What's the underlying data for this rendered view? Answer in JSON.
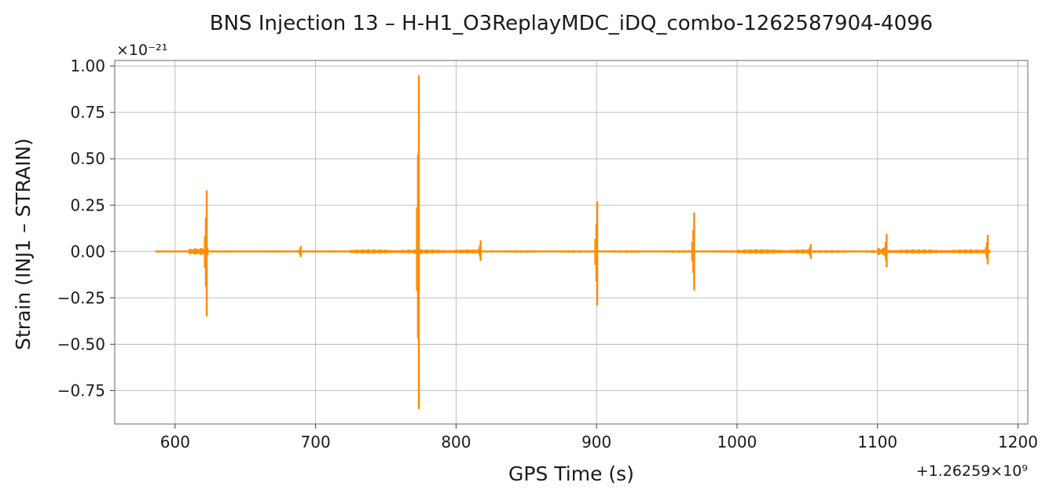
{
  "chart_data": {
    "type": "line",
    "title": "BNS Injection 13 – H-H1_O3ReplayMDC_iDQ_combo-1262587904-4096",
    "xlabel": "GPS Time (s)",
    "ylabel": "Strain (INJ1 – STRAIN)",
    "y_scale_label": "×10⁻²¹",
    "x_offset_label": "+1.26259×10⁹",
    "xlim": [
      557,
      1207
    ],
    "ylim": [
      -0.93,
      1.03
    ],
    "x_ticks": [
      600,
      700,
      800,
      900,
      1000,
      1100,
      1200
    ],
    "x_tick_labels": [
      "600",
      "700",
      "800",
      "900",
      "1000",
      "1100",
      "1200"
    ],
    "y_ticks": [
      -0.75,
      -0.5,
      -0.25,
      0.0,
      0.25,
      0.5,
      0.75,
      1.0
    ],
    "y_tick_labels": [
      "−0.75",
      "−0.50",
      "−0.25",
      "0.00",
      "0.25",
      "0.50",
      "0.75",
      "1.00"
    ],
    "grid": true,
    "x_range": [
      586,
      1180
    ],
    "series": [
      {
        "color": "#ff8c00",
        "noise_bands": [
          {
            "x_start": 586,
            "x_end": 610,
            "amplitude": 0.004
          },
          {
            "x_start": 610,
            "x_end": 624,
            "amplitude": 0.02
          },
          {
            "x_start": 624,
            "x_end": 725,
            "amplitude": 0.006
          },
          {
            "x_start": 725,
            "x_end": 816,
            "amplitude": 0.012
          },
          {
            "x_start": 816,
            "x_end": 1000,
            "amplitude": 0.007
          },
          {
            "x_start": 1000,
            "x_end": 1053,
            "amplitude": 0.013
          },
          {
            "x_start": 1053,
            "x_end": 1100,
            "amplitude": 0.008
          },
          {
            "x_start": 1100,
            "x_end": 1107,
            "amplitude": 0.02
          },
          {
            "x_start": 1107,
            "x_end": 1180,
            "amplitude": 0.012
          }
        ],
        "spikes": [
          {
            "x": 622.5,
            "max": 0.33,
            "min": -0.35
          },
          {
            "x": 689.5,
            "max": 0.03,
            "min": -0.03
          },
          {
            "x": 773.5,
            "max": 0.95,
            "min": -0.85
          },
          {
            "x": 817.5,
            "max": 0.06,
            "min": -0.05
          },
          {
            "x": 900.5,
            "max": 0.27,
            "min": -0.29
          },
          {
            "x": 969.5,
            "max": 0.21,
            "min": -0.21
          },
          {
            "x": 1052.5,
            "max": 0.04,
            "min": -0.04
          },
          {
            "x": 1106.5,
            "max": 0.095,
            "min": -0.085
          },
          {
            "x": 1178.5,
            "max": 0.09,
            "min": -0.07
          }
        ]
      }
    ]
  }
}
